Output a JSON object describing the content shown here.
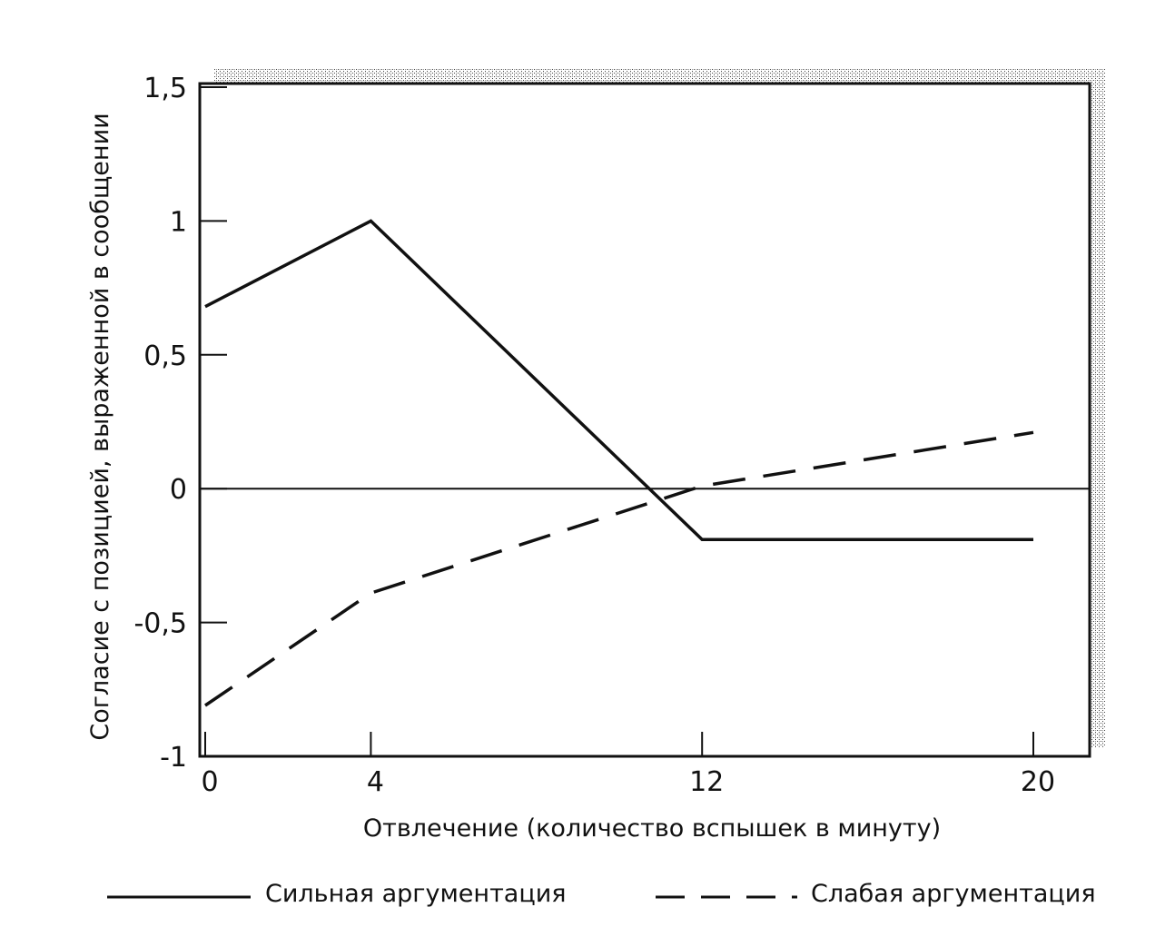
{
  "chart_data": {
    "type": "line",
    "title": "",
    "xlabel": "Отвлечение (количество вспышек в минуту)",
    "ylabel": "Согласие с позицией, выраженной в сообщении",
    "xlim": [
      0,
      20
    ],
    "ylim": [
      -1,
      1.5
    ],
    "x_ticks": [
      {
        "value": 0,
        "label": "0"
      },
      {
        "value": 4,
        "label": "4"
      },
      {
        "value": 12,
        "label": "12"
      },
      {
        "value": 20,
        "label": "20"
      }
    ],
    "y_ticks": [
      {
        "value": 1.5,
        "label": "1,5"
      },
      {
        "value": 1,
        "label": "1"
      },
      {
        "value": 0.5,
        "label": "0,5"
      },
      {
        "value": 0,
        "label": "0"
      },
      {
        "value": -0.5,
        "label": "-0,5"
      },
      {
        "value": -1,
        "label": "-1"
      }
    ],
    "zero_line": true,
    "grid": false,
    "legend_position": "bottom",
    "series": [
      {
        "name": "Сильная аргументация",
        "style": "solid",
        "color": "#111111",
        "points": [
          [
            0,
            0.68
          ],
          [
            4,
            1.0
          ],
          [
            12,
            -0.19
          ],
          [
            20,
            -0.19
          ]
        ]
      },
      {
        "name": "Слабая аргументация",
        "style": "dashed",
        "color": "#111111",
        "points": [
          [
            0,
            -0.81
          ],
          [
            4,
            -0.39
          ],
          [
            12,
            0.01
          ],
          [
            20,
            0.21
          ]
        ]
      }
    ]
  }
}
